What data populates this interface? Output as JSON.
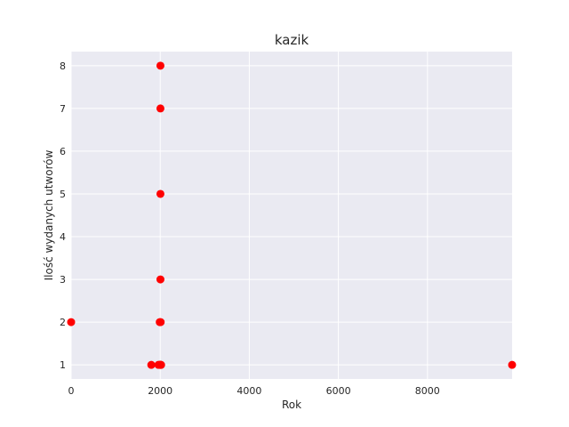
{
  "chart_data": {
    "type": "scatter",
    "title": "kazik",
    "xlabel": "Rok",
    "ylabel": "Ilość wydanych utworów",
    "xlim": [
      0,
      9900
    ],
    "ylim": [
      0.67,
      8.33
    ],
    "xticks": [
      0,
      2000,
      4000,
      6000,
      8000
    ],
    "xtick_labels": [
      "0",
      "2000",
      "4000",
      "6000",
      "8000"
    ],
    "yticks": [
      1,
      2,
      3,
      4,
      5,
      6,
      7,
      8
    ],
    "ytick_labels": [
      "1",
      "2",
      "3",
      "4",
      "5",
      "6",
      "7",
      "8"
    ],
    "grid": true,
    "marker_color": "#ff0000",
    "background_color": "#eaeaf2",
    "points": [
      {
        "x": 0,
        "y": 2
      },
      {
        "x": 1800,
        "y": 1
      },
      {
        "x": 1960,
        "y": 1
      },
      {
        "x": 1990,
        "y": 1
      },
      {
        "x": 2000,
        "y": 1
      },
      {
        "x": 2010,
        "y": 1
      },
      {
        "x": 2020,
        "y": 1
      },
      {
        "x": 2005,
        "y": 8
      },
      {
        "x": 2005,
        "y": 7
      },
      {
        "x": 2005,
        "y": 5
      },
      {
        "x": 2005,
        "y": 3
      },
      {
        "x": 1990,
        "y": 2
      },
      {
        "x": 2010,
        "y": 2
      },
      {
        "x": 9900,
        "y": 1
      }
    ]
  }
}
